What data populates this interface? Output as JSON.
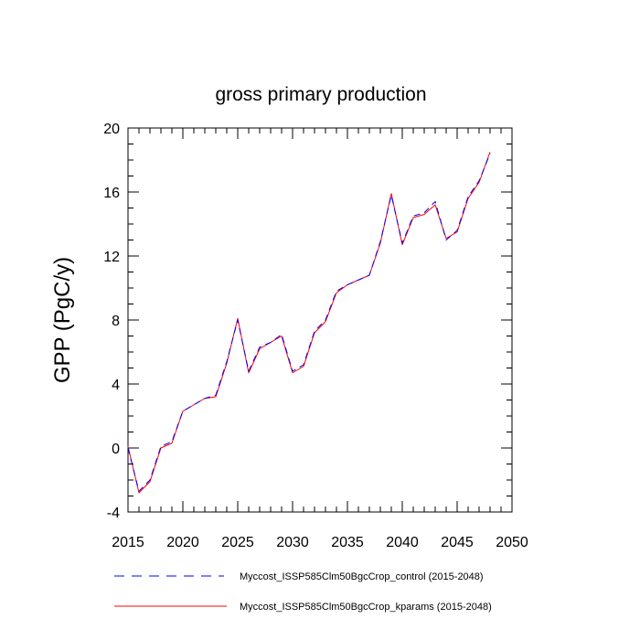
{
  "chart_data": {
    "type": "line",
    "title": "gross primary production",
    "xlabel": "",
    "ylabel": "GPP  (PgC/y)",
    "xlim": [
      2015,
      2050
    ],
    "ylim": [
      -4,
      20
    ],
    "xticks": [
      2015,
      2020,
      2025,
      2030,
      2035,
      2040,
      2045,
      2050
    ],
    "yticks": [
      -4,
      0,
      4,
      8,
      12,
      16,
      20
    ],
    "grid": false,
    "legend_position": "bottom",
    "x": [
      2015,
      2016,
      2017,
      2018,
      2019,
      2020,
      2021,
      2022,
      2023,
      2024,
      2025,
      2026,
      2027,
      2028,
      2029,
      2030,
      2031,
      2032,
      2033,
      2034,
      2035,
      2036,
      2037,
      2038,
      2039,
      2040,
      2041,
      2042,
      2043,
      2044,
      2045,
      2046,
      2047,
      2048
    ],
    "series": [
      {
        "name": "Myccost_ISSP585Clm50BgcCrop_control (2015-2048)",
        "color": "#0000ff",
        "dash": "dashed",
        "values": [
          0.0,
          -2.7,
          -2.0,
          0.1,
          0.4,
          2.3,
          2.7,
          3.1,
          3.3,
          5.4,
          8.0,
          4.8,
          6.3,
          6.6,
          7.1,
          4.8,
          5.2,
          7.3,
          8.0,
          9.8,
          10.2,
          10.5,
          10.8,
          12.9,
          15.8,
          12.8,
          14.5,
          14.7,
          15.4,
          13.0,
          13.6,
          15.7,
          16.7,
          18.4
        ]
      },
      {
        "name": "Myccost_ISSP585Clm50BgcCrop_kparams (2015-2048)",
        "color": "#ff0000",
        "dash": "solid",
        "values": [
          0.1,
          -2.8,
          -2.1,
          0.0,
          0.3,
          2.3,
          2.7,
          3.1,
          3.2,
          5.3,
          8.1,
          4.7,
          6.2,
          6.6,
          7.0,
          4.7,
          5.1,
          7.2,
          7.9,
          9.7,
          10.2,
          10.5,
          10.8,
          12.8,
          15.9,
          12.7,
          14.4,
          14.6,
          15.2,
          13.1,
          13.5,
          15.6,
          16.6,
          18.5
        ]
      }
    ]
  }
}
